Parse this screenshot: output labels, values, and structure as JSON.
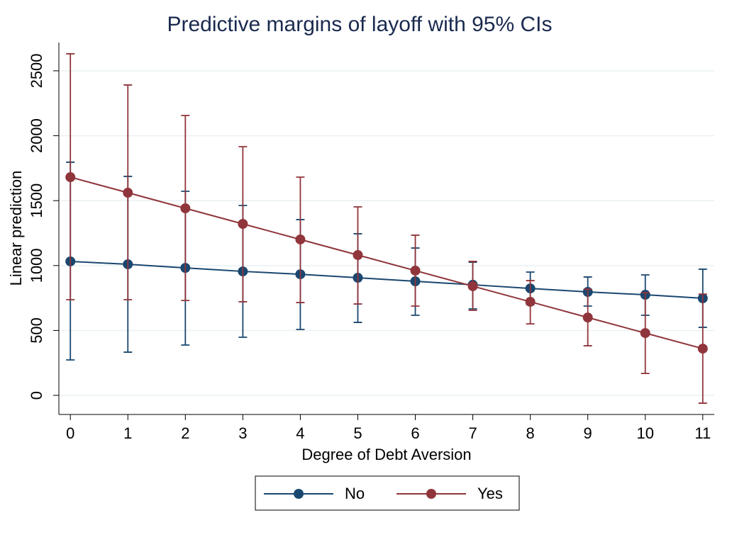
{
  "chart_data": {
    "type": "line",
    "title": "Predictive margins of layoff with 95% CIs",
    "x_label": "Degree of Debt Aversion",
    "y_label": "Linear prediction",
    "x": [
      0,
      1,
      2,
      3,
      4,
      5,
      6,
      7,
      8,
      9,
      10,
      11
    ],
    "xlim": [
      -0.2,
      11.2
    ],
    "xticks": [
      0,
      1,
      2,
      3,
      4,
      5,
      6,
      7,
      8,
      9,
      10,
      11
    ],
    "ylim": [
      -147,
      2718
    ],
    "yticks": [
      0,
      500,
      1000,
      1500,
      2000,
      2500
    ],
    "grid": true,
    "legend": "bottom",
    "series": [
      {
        "name": "No",
        "color": "#1a476f",
        "values": [
          1032,
          1010,
          982,
          955,
          933,
          906,
          879,
          852,
          824,
          797,
          775,
          748
        ],
        "ci_low": [
          273,
          333,
          388,
          448,
          508,
          562,
          617,
          666,
          699,
          688,
          617,
          524
        ],
        "ci_high": [
          1796,
          1687,
          1572,
          1463,
          1354,
          1245,
          1135,
          1026,
          950,
          912,
          928,
          972
        ]
      },
      {
        "name": "Yes",
        "color": "#90353b",
        "values": [
          1681,
          1561,
          1441,
          1321,
          1201,
          1081,
          961,
          841,
          721,
          600,
          480,
          360
        ],
        "ci_low": [
          737,
          737,
          731,
          721,
          715,
          704,
          688,
          655,
          551,
          382,
          169,
          -60
        ],
        "ci_high": [
          2631,
          2391,
          2156,
          1916,
          1681,
          1452,
          1234,
          1032,
          884,
          818,
          791,
          780
        ]
      }
    ]
  }
}
